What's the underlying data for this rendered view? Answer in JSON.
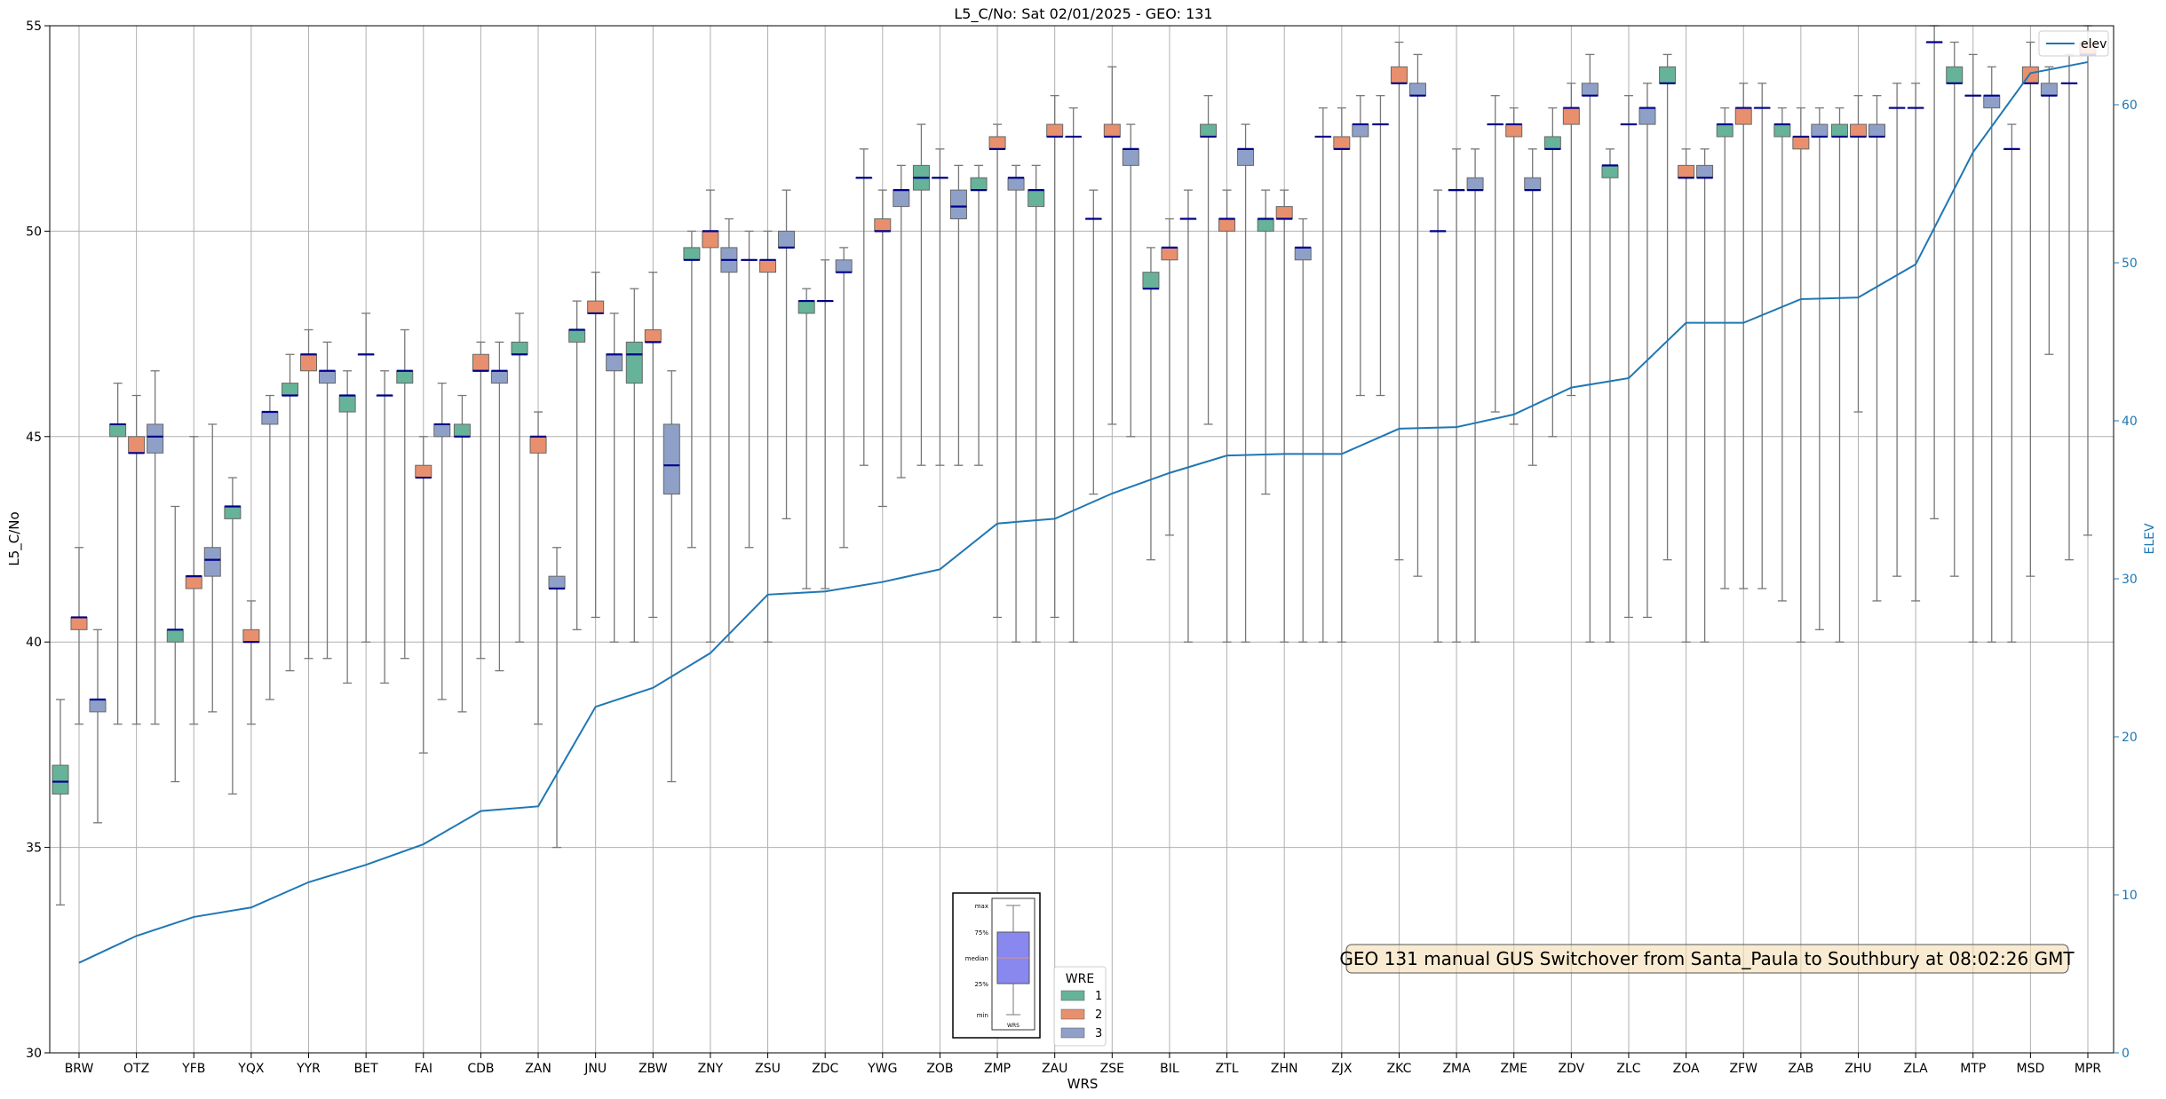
{
  "chart_data": {
    "type": "box",
    "title": "L5_C/No: Sat 02/01/2025 - GEO: 131",
    "xlabel": "WRS",
    "ylabel": "L5_C/No",
    "y2label": "ELEV",
    "ylim": [
      30,
      55
    ],
    "y2lim": [
      0,
      65
    ],
    "yticks": [
      "30",
      "35",
      "40",
      "45",
      "50",
      "55"
    ],
    "y2ticks": [
      "0",
      "10",
      "20",
      "30",
      "40",
      "50",
      "60"
    ],
    "grid": true,
    "categories": [
      "BRW",
      "OTZ",
      "YFB",
      "YQX",
      "YYR",
      "BET",
      "FAI",
      "CDB",
      "ZAN",
      "JNU",
      "ZBW",
      "ZNY",
      "ZSU",
      "ZDC",
      "YWG",
      "ZOB",
      "ZMP",
      "ZAU",
      "ZSE",
      "BIL",
      "ZTL",
      "ZHN",
      "ZJX",
      "ZKC",
      "ZMA",
      "ZME",
      "ZDV",
      "ZLC",
      "ZOA",
      "ZFW",
      "ZAB",
      "ZHU",
      "ZLA",
      "MTP",
      "MSD",
      "MPR"
    ],
    "series_legend": {
      "title": "WRE",
      "entries": [
        {
          "name": "1",
          "color": "#66b39a"
        },
        {
          "name": "2",
          "color": "#e8906d"
        },
        {
          "name": "3",
          "color": "#8fa0c8"
        }
      ]
    },
    "median_color": "#00008b",
    "boxes": [
      {
        "cat": 0,
        "wre": 1,
        "min": 33.6,
        "q1": 36.3,
        "med": 36.6,
        "q3": 37.0,
        "max": 38.6
      },
      {
        "cat": 0,
        "wre": 2,
        "min": 38.0,
        "q1": 40.3,
        "med": 40.6,
        "q3": 40.6,
        "max": 42.3
      },
      {
        "cat": 0,
        "wre": 3,
        "min": 35.6,
        "q1": 38.3,
        "med": 38.6,
        "q3": 38.6,
        "max": 40.3
      },
      {
        "cat": 1,
        "wre": 1,
        "min": 38.0,
        "q1": 45.0,
        "med": 45.3,
        "q3": 45.3,
        "max": 46.3
      },
      {
        "cat": 1,
        "wre": 2,
        "min": 38.0,
        "q1": 44.6,
        "med": 44.6,
        "q3": 45.0,
        "max": 46.0
      },
      {
        "cat": 1,
        "wre": 3,
        "min": 38.0,
        "q1": 44.6,
        "med": 45.0,
        "q3": 45.3,
        "max": 46.6
      },
      {
        "cat": 2,
        "wre": 1,
        "min": 36.6,
        "q1": 40.0,
        "med": 40.3,
        "q3": 40.3,
        "max": 43.3
      },
      {
        "cat": 2,
        "wre": 2,
        "min": 38.0,
        "q1": 41.3,
        "med": 41.6,
        "q3": 41.6,
        "max": 45.0
      },
      {
        "cat": 2,
        "wre": 3,
        "min": 38.3,
        "q1": 41.6,
        "med": 42.0,
        "q3": 42.3,
        "max": 45.3
      },
      {
        "cat": 3,
        "wre": 1,
        "min": 36.3,
        "q1": 43.0,
        "med": 43.3,
        "q3": 43.3,
        "max": 44.0
      },
      {
        "cat": 3,
        "wre": 2,
        "min": 38.0,
        "q1": 40.0,
        "med": 40.0,
        "q3": 40.3,
        "max": 41.0
      },
      {
        "cat": 3,
        "wre": 3,
        "min": 38.6,
        "q1": 45.3,
        "med": 45.6,
        "q3": 45.6,
        "max": 46.0
      },
      {
        "cat": 4,
        "wre": 1,
        "min": 39.3,
        "q1": 46.0,
        "med": 46.0,
        "q3": 46.3,
        "max": 47.0
      },
      {
        "cat": 4,
        "wre": 2,
        "min": 39.6,
        "q1": 46.6,
        "med": 47.0,
        "q3": 47.0,
        "max": 47.6
      },
      {
        "cat": 4,
        "wre": 3,
        "min": 39.6,
        "q1": 46.3,
        "med": 46.6,
        "q3": 46.6,
        "max": 47.3
      },
      {
        "cat": 5,
        "wre": 1,
        "min": 39.0,
        "q1": 45.6,
        "med": 46.0,
        "q3": 46.0,
        "max": 46.6
      },
      {
        "cat": 5,
        "wre": 2,
        "min": 40.0,
        "q1": 47.0,
        "med": 47.0,
        "q3": 47.0,
        "max": 48.0
      },
      {
        "cat": 5,
        "wre": 3,
        "min": 39.0,
        "q1": 46.0,
        "med": 46.0,
        "q3": 46.0,
        "max": 46.6
      },
      {
        "cat": 6,
        "wre": 1,
        "min": 39.6,
        "q1": 46.3,
        "med": 46.6,
        "q3": 46.6,
        "max": 47.6
      },
      {
        "cat": 6,
        "wre": 2,
        "min": 37.3,
        "q1": 44.0,
        "med": 44.0,
        "q3": 44.3,
        "max": 45.0
      },
      {
        "cat": 6,
        "wre": 3,
        "min": 38.6,
        "q1": 45.0,
        "med": 45.3,
        "q3": 45.3,
        "max": 46.3
      },
      {
        "cat": 7,
        "wre": 1,
        "min": 38.3,
        "q1": 45.0,
        "med": 45.0,
        "q3": 45.3,
        "max": 46.0
      },
      {
        "cat": 7,
        "wre": 2,
        "min": 39.6,
        "q1": 46.6,
        "med": 46.6,
        "q3": 47.0,
        "max": 47.3
      },
      {
        "cat": 7,
        "wre": 3,
        "min": 39.3,
        "q1": 46.3,
        "med": 46.6,
        "q3": 46.6,
        "max": 47.3
      },
      {
        "cat": 8,
        "wre": 1,
        "min": 40.0,
        "q1": 47.0,
        "med": 47.0,
        "q3": 47.3,
        "max": 48.0
      },
      {
        "cat": 8,
        "wre": 2,
        "min": 38.0,
        "q1": 44.6,
        "med": 45.0,
        "q3": 45.0,
        "max": 45.6
      },
      {
        "cat": 8,
        "wre": 3,
        "min": 35.0,
        "q1": 41.3,
        "med": 41.3,
        "q3": 41.6,
        "max": 42.3
      },
      {
        "cat": 9,
        "wre": 1,
        "min": 40.3,
        "q1": 47.3,
        "med": 47.6,
        "q3": 47.6,
        "max": 48.3
      },
      {
        "cat": 9,
        "wre": 2,
        "min": 40.6,
        "q1": 48.0,
        "med": 48.0,
        "q3": 48.3,
        "max": 49.0
      },
      {
        "cat": 9,
        "wre": 3,
        "min": 40.0,
        "q1": 46.6,
        "med": 47.0,
        "q3": 47.0,
        "max": 48.0
      },
      {
        "cat": 10,
        "wre": 1,
        "min": 40.0,
        "q1": 46.3,
        "med": 47.0,
        "q3": 47.3,
        "max": 48.6
      },
      {
        "cat": 10,
        "wre": 2,
        "min": 40.6,
        "q1": 47.3,
        "med": 47.3,
        "q3": 47.6,
        "max": 49.0
      },
      {
        "cat": 10,
        "wre": 3,
        "min": 36.6,
        "q1": 43.6,
        "med": 44.3,
        "q3": 45.3,
        "max": 46.6
      },
      {
        "cat": 11,
        "wre": 1,
        "min": 42.3,
        "q1": 49.3,
        "med": 49.3,
        "q3": 49.6,
        "max": 50.0
      },
      {
        "cat": 11,
        "wre": 2,
        "min": 40.0,
        "q1": 49.6,
        "med": 50.0,
        "q3": 50.0,
        "max": 51.0
      },
      {
        "cat": 11,
        "wre": 3,
        "min": 40.0,
        "q1": 49.0,
        "med": 49.3,
        "q3": 49.6,
        "max": 50.3
      },
      {
        "cat": 12,
        "wre": 1,
        "min": 42.3,
        "q1": 49.3,
        "med": 49.3,
        "q3": 49.3,
        "max": 50.0
      },
      {
        "cat": 12,
        "wre": 2,
        "min": 40.0,
        "q1": 49.0,
        "med": 49.3,
        "q3": 49.3,
        "max": 50.0
      },
      {
        "cat": 12,
        "wre": 3,
        "min": 43.0,
        "q1": 49.6,
        "med": 49.6,
        "q3": 50.0,
        "max": 51.0
      },
      {
        "cat": 13,
        "wre": 1,
        "min": 41.3,
        "q1": 48.0,
        "med": 48.3,
        "q3": 48.3,
        "max": 48.6
      },
      {
        "cat": 13,
        "wre": 2,
        "min": 41.3,
        "q1": 48.3,
        "med": 48.3,
        "q3": 48.3,
        "max": 49.3
      },
      {
        "cat": 13,
        "wre": 3,
        "min": 42.3,
        "q1": 49.0,
        "med": 49.0,
        "q3": 49.3,
        "max": 49.6
      },
      {
        "cat": 14,
        "wre": 1,
        "min": 44.3,
        "q1": 51.3,
        "med": 51.3,
        "q3": 51.3,
        "max": 52.0
      },
      {
        "cat": 14,
        "wre": 2,
        "min": 43.3,
        "q1": 50.0,
        "med": 50.0,
        "q3": 50.3,
        "max": 51.0
      },
      {
        "cat": 14,
        "wre": 3,
        "min": 44.0,
        "q1": 50.6,
        "med": 51.0,
        "q3": 51.0,
        "max": 51.6
      },
      {
        "cat": 15,
        "wre": 1,
        "min": 44.3,
        "q1": 51.0,
        "med": 51.3,
        "q3": 51.6,
        "max": 52.6
      },
      {
        "cat": 15,
        "wre": 2,
        "min": 44.3,
        "q1": 51.3,
        "med": 51.3,
        "q3": 51.3,
        "max": 52.0
      },
      {
        "cat": 15,
        "wre": 3,
        "min": 44.3,
        "q1": 50.3,
        "med": 50.6,
        "q3": 51.0,
        "max": 51.6
      },
      {
        "cat": 16,
        "wre": 1,
        "min": 44.3,
        "q1": 51.0,
        "med": 51.0,
        "q3": 51.3,
        "max": 51.6
      },
      {
        "cat": 16,
        "wre": 2,
        "min": 40.6,
        "q1": 52.0,
        "med": 52.0,
        "q3": 52.3,
        "max": 52.6
      },
      {
        "cat": 16,
        "wre": 3,
        "min": 40.0,
        "q1": 51.0,
        "med": 51.3,
        "q3": 51.3,
        "max": 51.6
      },
      {
        "cat": 17,
        "wre": 1,
        "min": 40.0,
        "q1": 50.6,
        "med": 51.0,
        "q3": 51.0,
        "max": 51.6
      },
      {
        "cat": 17,
        "wre": 2,
        "min": 40.6,
        "q1": 52.3,
        "med": 52.3,
        "q3": 52.6,
        "max": 53.3
      },
      {
        "cat": 17,
        "wre": 3,
        "min": 40.0,
        "q1": 52.3,
        "med": 52.3,
        "q3": 52.3,
        "max": 53.0
      },
      {
        "cat": 18,
        "wre": 1,
        "min": 43.6,
        "q1": 50.3,
        "med": 50.3,
        "q3": 50.3,
        "max": 51.0
      },
      {
        "cat": 18,
        "wre": 2,
        "min": 45.3,
        "q1": 52.3,
        "med": 52.3,
        "q3": 52.6,
        "max": 54.0
      },
      {
        "cat": 18,
        "wre": 3,
        "min": 45.0,
        "q1": 51.6,
        "med": 52.0,
        "q3": 52.0,
        "max": 52.6
      },
      {
        "cat": 19,
        "wre": 1,
        "min": 42.0,
        "q1": 48.6,
        "med": 48.6,
        "q3": 49.0,
        "max": 49.6
      },
      {
        "cat": 19,
        "wre": 2,
        "min": 42.6,
        "q1": 49.3,
        "med": 49.6,
        "q3": 49.6,
        "max": 50.3
      },
      {
        "cat": 19,
        "wre": 3,
        "min": 40.0,
        "q1": 50.3,
        "med": 50.3,
        "q3": 50.3,
        "max": 51.0
      },
      {
        "cat": 20,
        "wre": 1,
        "min": 45.3,
        "q1": 52.3,
        "med": 52.3,
        "q3": 52.6,
        "max": 53.3
      },
      {
        "cat": 20,
        "wre": 2,
        "min": 40.0,
        "q1": 50.0,
        "med": 50.3,
        "q3": 50.3,
        "max": 51.0
      },
      {
        "cat": 20,
        "wre": 3,
        "min": 40.0,
        "q1": 51.6,
        "med": 52.0,
        "q3": 52.0,
        "max": 52.6
      },
      {
        "cat": 21,
        "wre": 1,
        "min": 43.6,
        "q1": 50.0,
        "med": 50.3,
        "q3": 50.3,
        "max": 51.0
      },
      {
        "cat": 21,
        "wre": 2,
        "min": 40.0,
        "q1": 50.3,
        "med": 50.3,
        "q3": 50.6,
        "max": 51.0
      },
      {
        "cat": 21,
        "wre": 3,
        "min": 40.0,
        "q1": 49.3,
        "med": 49.6,
        "q3": 49.6,
        "max": 50.3
      },
      {
        "cat": 22,
        "wre": 1,
        "min": 40.0,
        "q1": 52.3,
        "med": 52.3,
        "q3": 52.3,
        "max": 53.0
      },
      {
        "cat": 22,
        "wre": 2,
        "min": 40.0,
        "q1": 52.0,
        "med": 52.0,
        "q3": 52.3,
        "max": 53.0
      },
      {
        "cat": 22,
        "wre": 3,
        "min": 46.0,
        "q1": 52.3,
        "med": 52.6,
        "q3": 52.6,
        "max": 53.3
      },
      {
        "cat": 23,
        "wre": 1,
        "min": 46.0,
        "q1": 52.6,
        "med": 52.6,
        "q3": 52.6,
        "max": 53.3
      },
      {
        "cat": 23,
        "wre": 2,
        "min": 42.0,
        "q1": 53.6,
        "med": 53.6,
        "q3": 54.0,
        "max": 54.6
      },
      {
        "cat": 23,
        "wre": 3,
        "min": 41.6,
        "q1": 53.3,
        "med": 53.3,
        "q3": 53.6,
        "max": 54.3
      },
      {
        "cat": 24,
        "wre": 1,
        "min": 40.0,
        "q1": 50.0,
        "med": 50.0,
        "q3": 50.0,
        "max": 51.0
      },
      {
        "cat": 24,
        "wre": 2,
        "min": 40.0,
        "q1": 51.0,
        "med": 51.0,
        "q3": 51.0,
        "max": 52.0
      },
      {
        "cat": 24,
        "wre": 3,
        "min": 40.0,
        "q1": 51.0,
        "med": 51.0,
        "q3": 51.3,
        "max": 52.0
      },
      {
        "cat": 25,
        "wre": 1,
        "min": 45.6,
        "q1": 52.6,
        "med": 52.6,
        "q3": 52.6,
        "max": 53.3
      },
      {
        "cat": 25,
        "wre": 2,
        "min": 45.3,
        "q1": 52.3,
        "med": 52.6,
        "q3": 52.6,
        "max": 53.0
      },
      {
        "cat": 25,
        "wre": 3,
        "min": 44.3,
        "q1": 51.0,
        "med": 51.0,
        "q3": 51.3,
        "max": 52.0
      },
      {
        "cat": 26,
        "wre": 1,
        "min": 45.0,
        "q1": 52.0,
        "med": 52.0,
        "q3": 52.3,
        "max": 53.0
      },
      {
        "cat": 26,
        "wre": 2,
        "min": 46.0,
        "q1": 52.6,
        "med": 53.0,
        "q3": 53.0,
        "max": 53.6
      },
      {
        "cat": 26,
        "wre": 3,
        "min": 40.0,
        "q1": 53.3,
        "med": 53.3,
        "q3": 53.6,
        "max": 54.3
      },
      {
        "cat": 27,
        "wre": 1,
        "min": 40.0,
        "q1": 51.3,
        "med": 51.6,
        "q3": 51.6,
        "max": 52.0
      },
      {
        "cat": 27,
        "wre": 2,
        "min": 40.6,
        "q1": 52.6,
        "med": 52.6,
        "q3": 52.6,
        "max": 53.3
      },
      {
        "cat": 27,
        "wre": 3,
        "min": 40.6,
        "q1": 52.6,
        "med": 53.0,
        "q3": 53.0,
        "max": 53.6
      },
      {
        "cat": 28,
        "wre": 1,
        "min": 42.0,
        "q1": 53.6,
        "med": 53.6,
        "q3": 54.0,
        "max": 54.3
      },
      {
        "cat": 28,
        "wre": 2,
        "min": 40.0,
        "q1": 51.3,
        "med": 51.3,
        "q3": 51.6,
        "max": 52.0
      },
      {
        "cat": 28,
        "wre": 3,
        "min": 40.0,
        "q1": 51.3,
        "med": 51.3,
        "q3": 51.6,
        "max": 52.0
      },
      {
        "cat": 29,
        "wre": 1,
        "min": 41.3,
        "q1": 52.3,
        "med": 52.6,
        "q3": 52.6,
        "max": 53.0
      },
      {
        "cat": 29,
        "wre": 2,
        "min": 41.3,
        "q1": 52.6,
        "med": 53.0,
        "q3": 53.0,
        "max": 53.6
      },
      {
        "cat": 29,
        "wre": 3,
        "min": 41.3,
        "q1": 53.0,
        "med": 53.0,
        "q3": 53.0,
        "max": 53.6
      },
      {
        "cat": 30,
        "wre": 1,
        "min": 41.0,
        "q1": 52.3,
        "med": 52.6,
        "q3": 52.6,
        "max": 53.0
      },
      {
        "cat": 30,
        "wre": 2,
        "min": 40.0,
        "q1": 52.0,
        "med": 52.3,
        "q3": 52.3,
        "max": 53.0
      },
      {
        "cat": 30,
        "wre": 3,
        "min": 40.3,
        "q1": 52.3,
        "med": 52.3,
        "q3": 52.6,
        "max": 53.0
      },
      {
        "cat": 31,
        "wre": 1,
        "min": 40.0,
        "q1": 52.3,
        "med": 52.3,
        "q3": 52.6,
        "max": 53.0
      },
      {
        "cat": 31,
        "wre": 2,
        "min": 45.6,
        "q1": 52.3,
        "med": 52.3,
        "q3": 52.6,
        "max": 53.3
      },
      {
        "cat": 31,
        "wre": 3,
        "min": 41.0,
        "q1": 52.3,
        "med": 52.3,
        "q3": 52.6,
        "max": 53.3
      },
      {
        "cat": 32,
        "wre": 1,
        "min": 41.6,
        "q1": 53.0,
        "med": 53.0,
        "q3": 53.0,
        "max": 53.6
      },
      {
        "cat": 32,
        "wre": 2,
        "min": 41.0,
        "q1": 53.0,
        "med": 53.0,
        "q3": 53.0,
        "max": 53.6
      },
      {
        "cat": 32,
        "wre": 3,
        "min": 43.0,
        "q1": 54.6,
        "med": 54.6,
        "q3": 54.6,
        "max": 55.0
      },
      {
        "cat": 33,
        "wre": 1,
        "min": 41.6,
        "q1": 53.6,
        "med": 53.6,
        "q3": 54.0,
        "max": 54.6
      },
      {
        "cat": 33,
        "wre": 2,
        "min": 40.0,
        "q1": 53.3,
        "med": 53.3,
        "q3": 53.3,
        "max": 54.3
      },
      {
        "cat": 33,
        "wre": 3,
        "min": 40.0,
        "q1": 53.0,
        "med": 53.3,
        "q3": 53.3,
        "max": 54.0
      },
      {
        "cat": 34,
        "wre": 1,
        "min": 40.0,
        "q1": 52.0,
        "med": 52.0,
        "q3": 52.0,
        "max": 52.6
      },
      {
        "cat": 34,
        "wre": 2,
        "min": 41.6,
        "q1": 53.6,
        "med": 53.6,
        "q3": 54.0,
        "max": 54.6
      },
      {
        "cat": 34,
        "wre": 3,
        "min": 47.0,
        "q1": 53.3,
        "med": 53.3,
        "q3": 53.6,
        "max": 54.0
      },
      {
        "cat": 35,
        "wre": 1,
        "min": 42.0,
        "q1": 53.6,
        "med": 53.6,
        "q3": 53.6,
        "max": 54.3
      },
      {
        "cat": 35,
        "wre": 2,
        "min": 42.6,
        "q1": 54.3,
        "med": 54.3,
        "q3": 54.6,
        "max": 55.0
      }
    ],
    "elev_series": {
      "name": "elev",
      "color": "#1f77b4",
      "values": [
        5.7,
        7.4,
        8.6,
        9.2,
        10.8,
        11.9,
        13.2,
        15.3,
        15.6,
        21.9,
        23.1,
        25.3,
        29.0,
        29.2,
        29.8,
        30.6,
        33.5,
        33.8,
        35.4,
        36.7,
        37.8,
        37.9,
        37.9,
        39.5,
        39.6,
        40.4,
        42.1,
        42.7,
        46.2,
        46.2,
        47.7,
        47.8,
        49.9,
        57.0,
        62.0,
        62.7
      ]
    },
    "annotation": "GEO 131 manual GUS Switchover from Santa_Paula to Southbury at 08:02:26 GMT",
    "legend_inset": {
      "labels": [
        "max",
        "75%",
        "median",
        "25%",
        "min"
      ],
      "xlabel": "WRS"
    }
  }
}
